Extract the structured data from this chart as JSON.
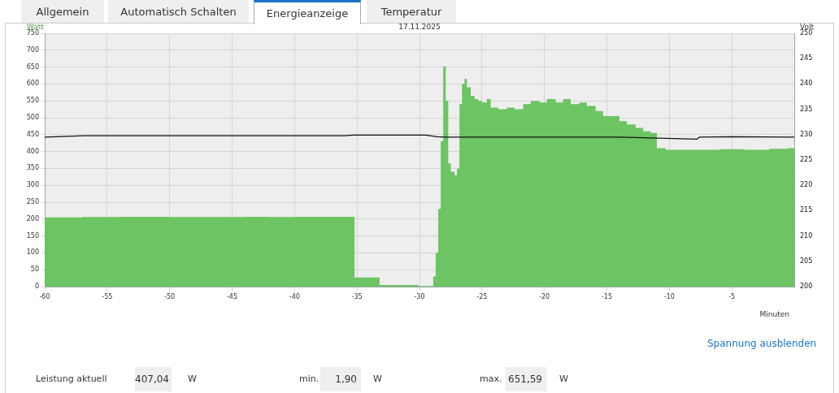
{
  "chart_data": {
    "type": "area",
    "title": "17.11.2025",
    "ylabel": "Watt",
    "y2label": "Volt",
    "xlabel": "Minuten",
    "xlim": [
      -60,
      0
    ],
    "xticks": [
      -60,
      -55,
      -50,
      -45,
      -40,
      -35,
      -30,
      -25,
      -20,
      -15,
      -10,
      -5
    ],
    "ylim": [
      0,
      750
    ],
    "yticks": [
      0,
      50,
      100,
      150,
      200,
      250,
      300,
      350,
      400,
      450,
      500,
      550,
      600,
      650,
      700,
      750
    ],
    "y2lim": [
      200,
      250
    ],
    "y2ticks": [
      200,
      205,
      210,
      215,
      220,
      225,
      230,
      235,
      240,
      245,
      250
    ],
    "grid": true,
    "legend": false,
    "series": [
      {
        "color": "#6cc462",
        "x": [
          -60,
          -57,
          -54,
          -50,
          -46,
          -44,
          -42,
          -40,
          -37,
          -35.2,
          -33.2,
          -30.1,
          -28.9,
          -28.7,
          -28.5,
          -28.3,
          -28.1,
          -27.9,
          -27.7,
          -27.5,
          -27.2,
          -27,
          -26.8,
          -26.6,
          -26.4,
          -26.2,
          -25.9,
          -25.6,
          -25.3,
          -25,
          -24.6,
          -24.3,
          -23.7,
          -23,
          -22.4,
          -21.7,
          -21.1,
          -20.4,
          -19.8,
          -19.1,
          -18.5,
          -17.9,
          -17.2,
          -16.6,
          -15.9,
          -15.3,
          -14.6,
          -14,
          -13.4,
          -12.7,
          -12.1,
          -11.5,
          -11,
          -10.3,
          -8,
          -6,
          -4,
          -2,
          -0.5,
          0
        ],
        "values": [
          205,
          206,
          207,
          206,
          206,
          207,
          206,
          207,
          207,
          27,
          5,
          2,
          30,
          100,
          230,
          430,
          652,
          550,
          365,
          340,
          330,
          350,
          540,
          600,
          615,
          590,
          565,
          555,
          550,
          545,
          555,
          530,
          525,
          530,
          525,
          540,
          550,
          545,
          555,
          545,
          555,
          540,
          545,
          535,
          520,
          505,
          505,
          490,
          480,
          470,
          460,
          455,
          410,
          405,
          405,
          407,
          405,
          408,
          410,
          407
        ]
      },
      {
        "type": "line",
        "axis": "y2",
        "color": "#111111",
        "x": [
          -60,
          -56.8,
          -36,
          -35.3,
          -29.5,
          -28.6,
          -28,
          -20,
          -14,
          -7.8,
          -7.6,
          -5,
          0
        ],
        "values": [
          229.5,
          229.8,
          229.8,
          229.9,
          229.9,
          229.6,
          229.5,
          229.5,
          229.5,
          229.1,
          229.5,
          229.6,
          229.5
        ]
      }
    ],
    "annotations": [
      "Allgemein",
      "Automatisch Schalten",
      "Energieanzeige",
      "Temperatur",
      "Spannung ausblenden",
      "Leistung aktuell",
      "407,04",
      "W",
      "min.",
      "1,90",
      "W",
      "max.",
      "651,59",
      "W"
    ]
  }
}
